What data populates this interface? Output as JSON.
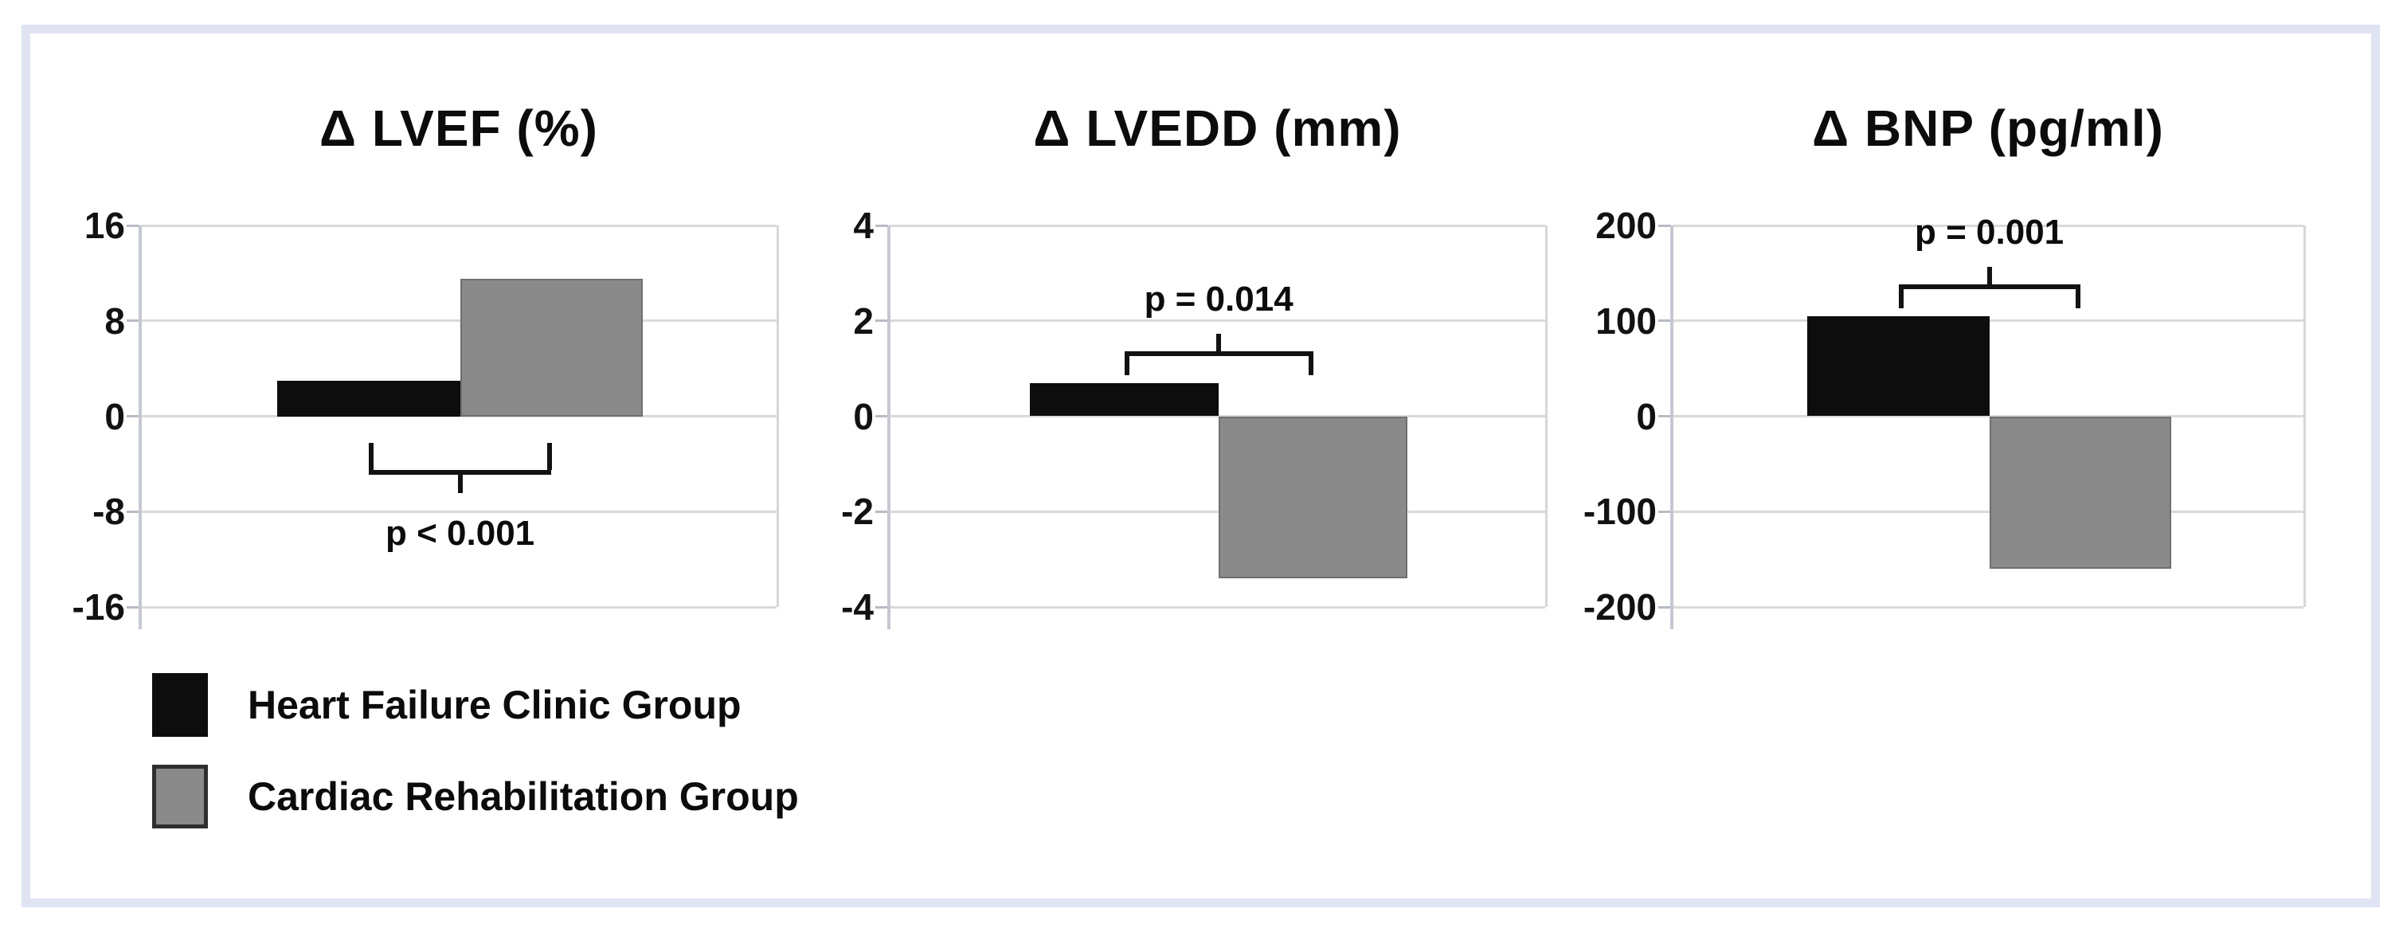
{
  "figure": {
    "background_color": "#ffffff",
    "border_color": "#dfe3f2"
  },
  "series_colors": {
    "black": "#0d0d0d",
    "gray": "#8a8a8a"
  },
  "legend": {
    "items": [
      {
        "label": "Heart Failure Clinic Group",
        "color": "#0d0d0d",
        "swatch": "black-square"
      },
      {
        "label": "Cardiac Rehabilitation Group",
        "color": "#8a8a8a",
        "swatch": "gray-square"
      }
    ]
  },
  "chart_data": [
    {
      "type": "bar",
      "title": "Δ LVEF (%)",
      "categories": [
        "Heart Failure Clinic Group",
        "Cardiac Rehabilitation Group"
      ],
      "values": [
        3,
        11.5
      ],
      "ylim": [
        -16,
        16
      ],
      "yticks": [
        16,
        8,
        0,
        -8,
        -16
      ],
      "grid": true,
      "legend_position": "bottom-left",
      "significance": {
        "label": "p < 0.001",
        "bracket_side": "below"
      }
    },
    {
      "type": "bar",
      "title": "Δ LVEDD (mm)",
      "categories": [
        "Heart Failure Clinic Group",
        "Cardiac Rehabilitation Group"
      ],
      "values": [
        0.7,
        -3.4
      ],
      "ylim": [
        -4,
        4
      ],
      "yticks": [
        4,
        2,
        0,
        -2,
        -4
      ],
      "grid": true,
      "legend_position": "bottom-left",
      "significance": {
        "label": "p = 0.014",
        "bracket_side": "above"
      }
    },
    {
      "type": "bar",
      "title": "Δ BNP (pg/ml)",
      "categories": [
        "Heart Failure Clinic Group",
        "Cardiac Rehabilitation Group"
      ],
      "values": [
        105,
        -160
      ],
      "ylim": [
        -200,
        200
      ],
      "yticks": [
        200,
        100,
        0,
        -100,
        -200
      ],
      "grid": true,
      "legend_position": "bottom-left",
      "significance": {
        "label": "p = 0.001",
        "bracket_side": "above"
      }
    }
  ]
}
